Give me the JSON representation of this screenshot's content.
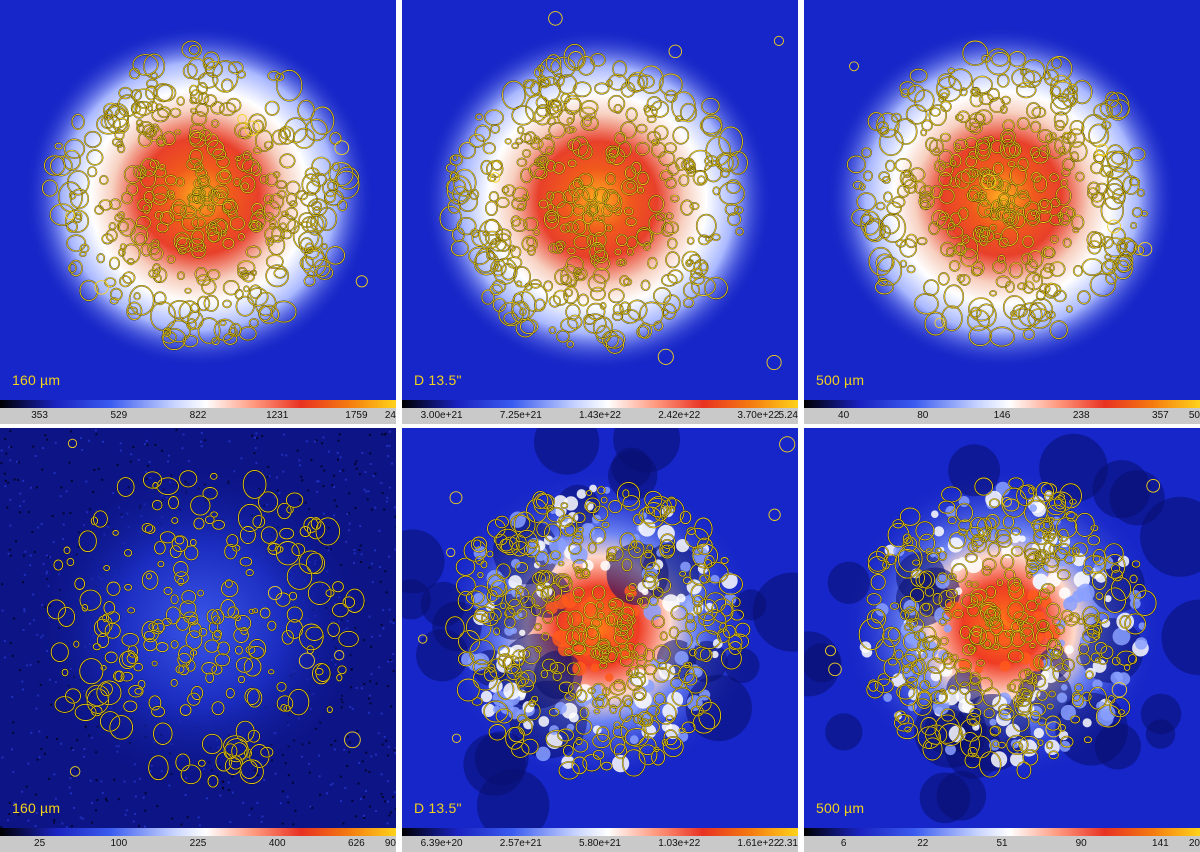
{
  "panels": [
    {
      "label": "160 µm",
      "ticks": [
        "353",
        "529",
        "822",
        "1231",
        "1759",
        "24"
      ],
      "tick_frac": [
        0.1,
        0.3,
        0.5,
        0.7,
        0.9,
        1.0
      ],
      "kind": "smooth-top"
    },
    {
      "label": "D 13.5\"",
      "ticks": [
        "3.00e+21",
        "7.25e+21",
        "1.43e+22",
        "2.42e+22",
        "3.70e+22",
        "5.24"
      ],
      "tick_frac": [
        0.1,
        0.3,
        0.5,
        0.7,
        0.9,
        1.0
      ],
      "kind": "smooth-top"
    },
    {
      "label": "500 µm",
      "ticks": [
        "40",
        "80",
        "146",
        "238",
        "357",
        "50"
      ],
      "tick_frac": [
        0.1,
        0.3,
        0.5,
        0.7,
        0.9,
        1.0
      ],
      "kind": "smooth-top"
    },
    {
      "label": "160 µm",
      "ticks": [
        "25",
        "100",
        "225",
        "400",
        "626",
        "90"
      ],
      "tick_frac": [
        0.1,
        0.3,
        0.5,
        0.7,
        0.9,
        1.0
      ],
      "kind": "noise-bottom"
    },
    {
      "label": "D 13.5\"",
      "ticks": [
        "6.39e+20",
        "2.57e+21",
        "5.80e+21",
        "1.03e+22",
        "1.61e+22",
        "2.31"
      ],
      "tick_frac": [
        0.1,
        0.3,
        0.5,
        0.7,
        0.9,
        1.0
      ],
      "kind": "blobs-bottom"
    },
    {
      "label": "500 µm",
      "ticks": [
        "6",
        "22",
        "51",
        "90",
        "141",
        "20"
      ],
      "tick_frac": [
        0.1,
        0.3,
        0.5,
        0.7,
        0.9,
        1.0
      ],
      "kind": "blobs-bottom"
    }
  ],
  "colors": {
    "background_blue": "#1626c8",
    "ellipse_outline": "#f2d21c",
    "label_text": "#f2d21c",
    "colorbar_bg": "#c9c9c9"
  }
}
